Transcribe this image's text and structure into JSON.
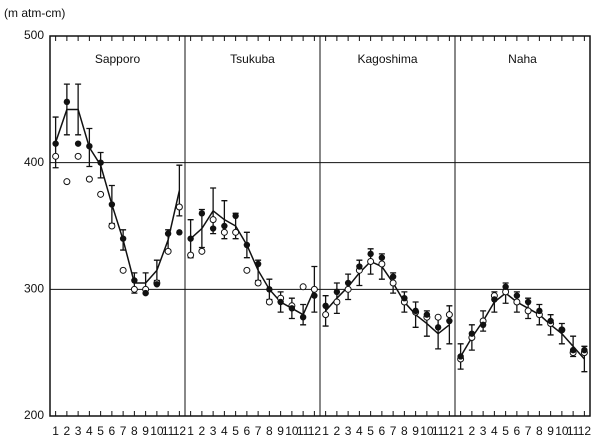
{
  "chart_data": {
    "type": "line",
    "ylabel": "(m atm-cm)",
    "ylim": [
      200,
      500
    ],
    "yticks": [
      200,
      300,
      400,
      500
    ],
    "grid": true,
    "categories": [
      "1",
      "2",
      "3",
      "4",
      "5",
      "6",
      "7",
      "8",
      "9",
      "10",
      "11",
      "12"
    ],
    "panels": [
      {
        "name": "Sapporo",
        "values": [
          416,
          442,
          442,
          412,
          398,
          367,
          339,
          305,
          305,
          315,
          339,
          378
        ],
        "errors": [
          20,
          20,
          20,
          15,
          10,
          15,
          8,
          8,
          8,
          8,
          8,
          20
        ],
        "filled": [
          415,
          448,
          415,
          413,
          400,
          367,
          340,
          307,
          297,
          304,
          344,
          345
        ],
        "open": [
          405,
          385,
          405,
          387,
          375,
          350,
          315,
          300,
          300,
          305,
          330,
          365
        ]
      },
      {
        "name": "Tsukuba",
        "values": [
          340,
          348,
          362,
          355,
          350,
          335,
          315,
          300,
          290,
          285,
          280,
          300
        ],
        "errors": [
          15,
          15,
          18,
          15,
          10,
          10,
          8,
          8,
          8,
          8,
          8,
          18
        ],
        "filled": [
          340,
          360,
          348,
          350,
          358,
          335,
          320,
          300,
          290,
          285,
          278,
          295
        ],
        "open": [
          327,
          330,
          355,
          345,
          345,
          315,
          305,
          290,
          293,
          287,
          302,
          300
        ]
      },
      {
        "name": "Kagoshima",
        "values": [
          283,
          293,
          302,
          313,
          322,
          318,
          305,
          290,
          280,
          273,
          265,
          272
        ],
        "errors": [
          12,
          12,
          10,
          10,
          10,
          10,
          8,
          8,
          10,
          10,
          12,
          15
        ],
        "filled": [
          287,
          298,
          305,
          318,
          328,
          325,
          310,
          293,
          283,
          280,
          270,
          275
        ],
        "open": [
          280,
          290,
          300,
          315,
          322,
          320,
          305,
          290,
          282,
          278,
          278,
          280
        ]
      },
      {
        "name": "Naha",
        "values": [
          247,
          262,
          275,
          290,
          297,
          290,
          285,
          280,
          272,
          265,
          255,
          245
        ],
        "errors": [
          10,
          10,
          8,
          8,
          8,
          8,
          8,
          8,
          8,
          8,
          8,
          10
        ],
        "filled": [
          247,
          265,
          272,
          292,
          302,
          295,
          290,
          283,
          275,
          268,
          252,
          252
        ],
        "open": [
          245,
          262,
          275,
          295,
          298,
          290,
          283,
          280,
          273,
          268,
          250,
          250
        ]
      }
    ]
  }
}
